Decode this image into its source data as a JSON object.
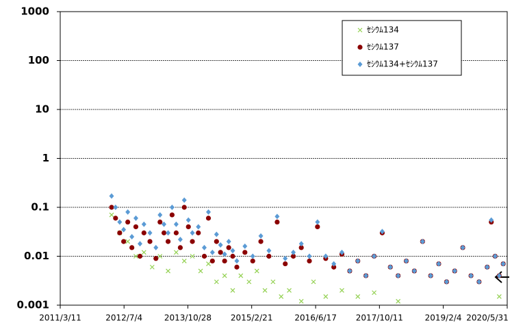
{
  "chart_data": {
    "type": "scatter",
    "log_y": true,
    "grid": true,
    "legend": "upper right",
    "xlim": [
      "2011/3/11",
      "2020/5/31"
    ],
    "xticks": [
      "2011/3/11",
      "2012/7/4",
      "2013/10/28",
      "2015/2/21",
      "2016/6/17",
      "2017/10/11",
      "2019/2/4",
      "2020/5/31"
    ],
    "ylim": [
      0.001,
      1000
    ],
    "yticks": [
      0.001,
      0.01,
      0.1,
      1,
      10,
      100,
      1000
    ],
    "series": [
      {
        "name": "ｾｼｳﾑ134",
        "color": "#92d050",
        "marker": "x",
        "x": [
          "2012/4/1",
          "2012/6/1",
          "2012/8/1",
          "2012/10/1",
          "2012/12/1",
          "2013/2/1",
          "2013/4/1",
          "2013/6/1",
          "2013/8/1",
          "2013/10/1",
          "2013/12/1",
          "2014/2/1",
          "2014/4/1",
          "2014/6/1",
          "2014/8/1",
          "2014/10/1",
          "2014/12/1",
          "2015/2/1",
          "2015/4/1",
          "2015/6/1",
          "2015/8/1",
          "2015/10/1",
          "2015/12/1",
          "2016/3/1",
          "2016/6/1",
          "2016/9/1",
          "2017/1/1",
          "2017/5/1",
          "2017/9/1",
          "2018/3/1",
          "2020/4/1"
        ],
        "values": [
          0.07,
          0.03,
          0.02,
          0.01,
          0.012,
          0.006,
          0.01,
          0.005,
          0.012,
          0.008,
          0.01,
          0.005,
          0.007,
          0.003,
          0.004,
          0.002,
          0.004,
          0.003,
          0.005,
          0.002,
          0.003,
          0.0015,
          0.002,
          0.0012,
          0.003,
          0.0015,
          0.002,
          0.0015,
          0.0018,
          0.0012,
          0.0015
        ]
      },
      {
        "name": "ｾｼｳﾑ137",
        "color": "#8b0000",
        "marker": "circle",
        "x": [
          "2012/4/1",
          "2012/5/1",
          "2012/6/1",
          "2012/7/1",
          "2012/8/1",
          "2012/9/1",
          "2012/10/1",
          "2012/11/1",
          "2012/12/1",
          "2013/1/15",
          "2013/3/1",
          "2013/4/1",
          "2013/5/1",
          "2013/6/1",
          "2013/7/1",
          "2013/8/1",
          "2013/9/1",
          "2013/10/1",
          "2013/11/1",
          "2013/12/1",
          "2014/1/15",
          "2014/3/1",
          "2014/4/1",
          "2014/5/1",
          "2014/6/1",
          "2014/7/1",
          "2014/8/1",
          "2014/9/1",
          "2014/10/1",
          "2014/11/1",
          "2015/1/1",
          "2015/3/1",
          "2015/5/1",
          "2015/7/1",
          "2015/9/1",
          "2015/11/1",
          "2016/1/1",
          "2016/3/1",
          "2016/5/1",
          "2016/7/1",
          "2016/9/1",
          "2016/11/1",
          "2017/1/1",
          "2017/3/1",
          "2017/5/1",
          "2017/7/1",
          "2017/9/1",
          "2017/11/1",
          "2018/1/1",
          "2018/3/1",
          "2018/5/1",
          "2018/7/1",
          "2018/9/1",
          "2018/11/1",
          "2019/1/1",
          "2019/3/1",
          "2019/5/1",
          "2019/7/1",
          "2019/9/1",
          "2019/11/1",
          "2020/1/1",
          "2020/2/1",
          "2020/3/1",
          "2020/4/1",
          "2020/5/1"
        ],
        "values": [
          0.1,
          0.06,
          0.03,
          0.02,
          0.05,
          0.015,
          0.04,
          0.01,
          0.03,
          0.02,
          0.009,
          0.05,
          0.03,
          0.02,
          0.07,
          0.03,
          0.015,
          0.1,
          0.04,
          0.02,
          0.03,
          0.01,
          0.06,
          0.008,
          0.02,
          0.012,
          0.008,
          0.015,
          0.01,
          0.006,
          0.012,
          0.008,
          0.02,
          0.01,
          0.05,
          0.007,
          0.01,
          0.015,
          0.008,
          0.04,
          0.009,
          0.006,
          0.011,
          0.005,
          0.008,
          0.004,
          0.01,
          0.03,
          0.006,
          0.004,
          0.008,
          0.005,
          0.02,
          0.004,
          0.007,
          0.003,
          0.005,
          0.015,
          0.004,
          0.003,
          0.006,
          0.05,
          0.01,
          0.004,
          0.007
        ]
      },
      {
        "name": "ｾｼｳﾑ134+ｾｼｳﾑ137",
        "color": "#5b9bd5",
        "marker": "diamond",
        "x": [
          "2012/4/1",
          "2012/5/1",
          "2012/6/1",
          "2012/7/1",
          "2012/8/1",
          "2012/9/1",
          "2012/10/1",
          "2012/11/1",
          "2012/12/1",
          "2013/1/15",
          "2013/3/1",
          "2013/4/1",
          "2013/5/1",
          "2013/6/1",
          "2013/7/1",
          "2013/8/1",
          "2013/9/1",
          "2013/10/1",
          "2013/11/1",
          "2013/12/1",
          "2014/1/15",
          "2014/3/1",
          "2014/4/1",
          "2014/5/1",
          "2014/6/1",
          "2014/7/1",
          "2014/8/1",
          "2014/9/1",
          "2014/10/1",
          "2014/11/1",
          "2015/1/1",
          "2015/3/1",
          "2015/5/1",
          "2015/7/1",
          "2015/9/1",
          "2015/11/1",
          "2016/1/1",
          "2016/3/1",
          "2016/5/1",
          "2016/7/1",
          "2016/9/1",
          "2016/11/1",
          "2017/1/1",
          "2017/3/1",
          "2017/5/1",
          "2017/7/1",
          "2017/9/1",
          "2017/11/1",
          "2018/1/1",
          "2018/3/1",
          "2018/5/1",
          "2018/7/1",
          "2018/9/1",
          "2018/11/1",
          "2019/1/1",
          "2019/3/1",
          "2019/5/1",
          "2019/7/1",
          "2019/9/1",
          "2019/11/1",
          "2020/1/1",
          "2020/2/1",
          "2020/3/1",
          "2020/4/1",
          "2020/5/1"
        ],
        "values": [
          0.17,
          0.1,
          0.05,
          0.035,
          0.08,
          0.025,
          0.06,
          0.018,
          0.045,
          0.03,
          0.015,
          0.07,
          0.045,
          0.03,
          0.1,
          0.045,
          0.022,
          0.14,
          0.055,
          0.03,
          0.04,
          0.015,
          0.08,
          0.012,
          0.028,
          0.017,
          0.011,
          0.02,
          0.013,
          0.008,
          0.016,
          0.01,
          0.026,
          0.013,
          0.065,
          0.009,
          0.012,
          0.018,
          0.01,
          0.05,
          0.01,
          0.007,
          0.012,
          0.005,
          0.008,
          0.004,
          0.01,
          0.032,
          0.006,
          0.004,
          0.008,
          0.005,
          0.02,
          0.004,
          0.007,
          0.003,
          0.005,
          0.015,
          0.004,
          0.003,
          0.006,
          0.055,
          0.01,
          0.004,
          0.007
        ]
      }
    ]
  }
}
